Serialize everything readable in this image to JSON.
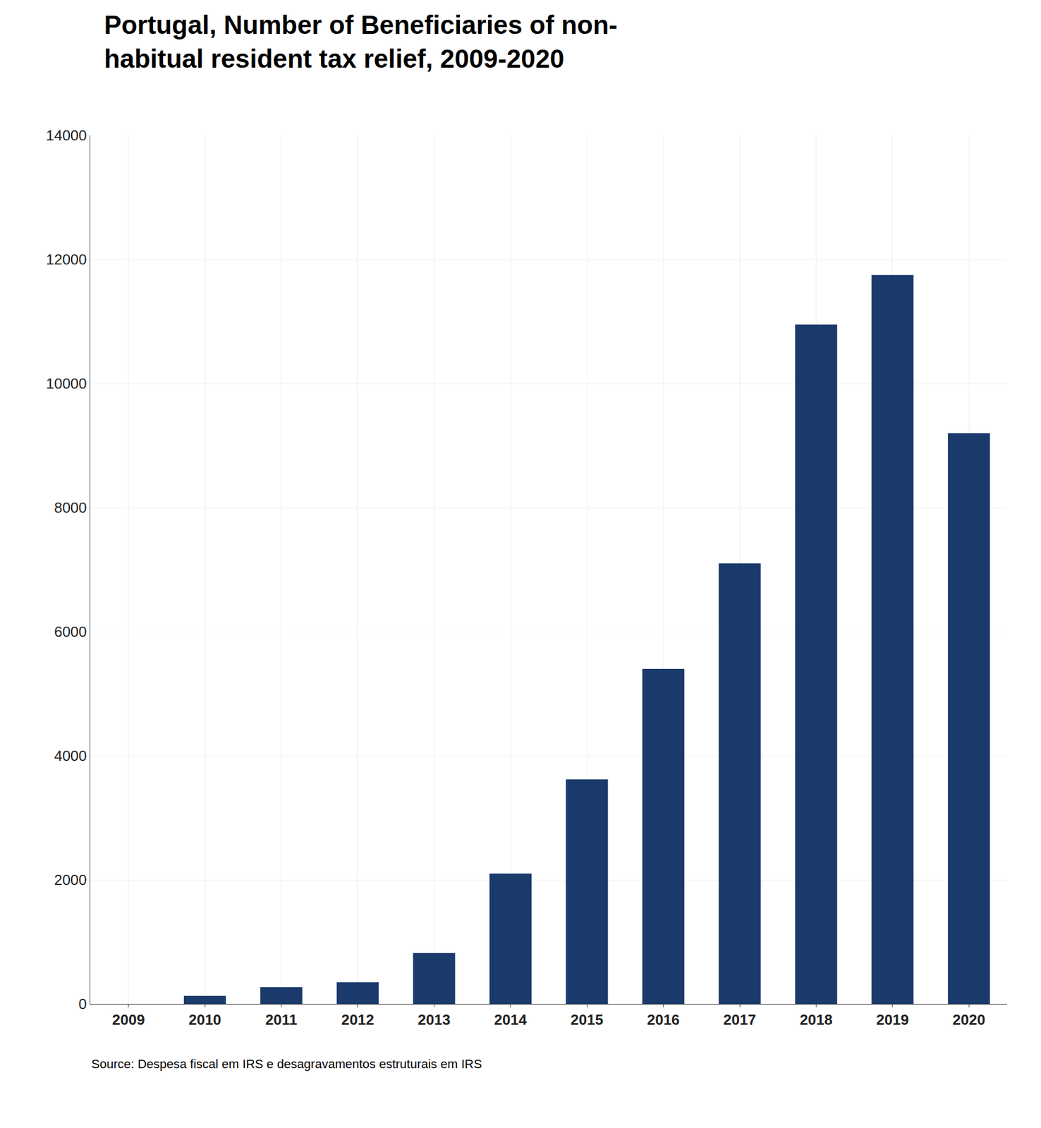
{
  "chart_data": {
    "type": "bar",
    "title": "Portugal, Number of Beneficiaries of non-\nhabitual resident tax relief, 2009-2020",
    "categories": [
      "2009",
      "2010",
      "2011",
      "2012",
      "2013",
      "2014",
      "2015",
      "2016",
      "2017",
      "2018",
      "2019",
      "2020"
    ],
    "values": [
      0,
      130,
      270,
      350,
      820,
      2100,
      3620,
      5400,
      7100,
      10950,
      11750,
      9200
    ],
    "color": "#1a3a6b",
    "ylim": [
      0,
      14000
    ],
    "yticks": [
      0,
      2000,
      4000,
      6000,
      8000,
      10000,
      12000,
      14000
    ],
    "grid": true,
    "annotations": [
      "Source: Despesa fiscal em IRS e desagravamentos estruturais em IRS"
    ]
  }
}
